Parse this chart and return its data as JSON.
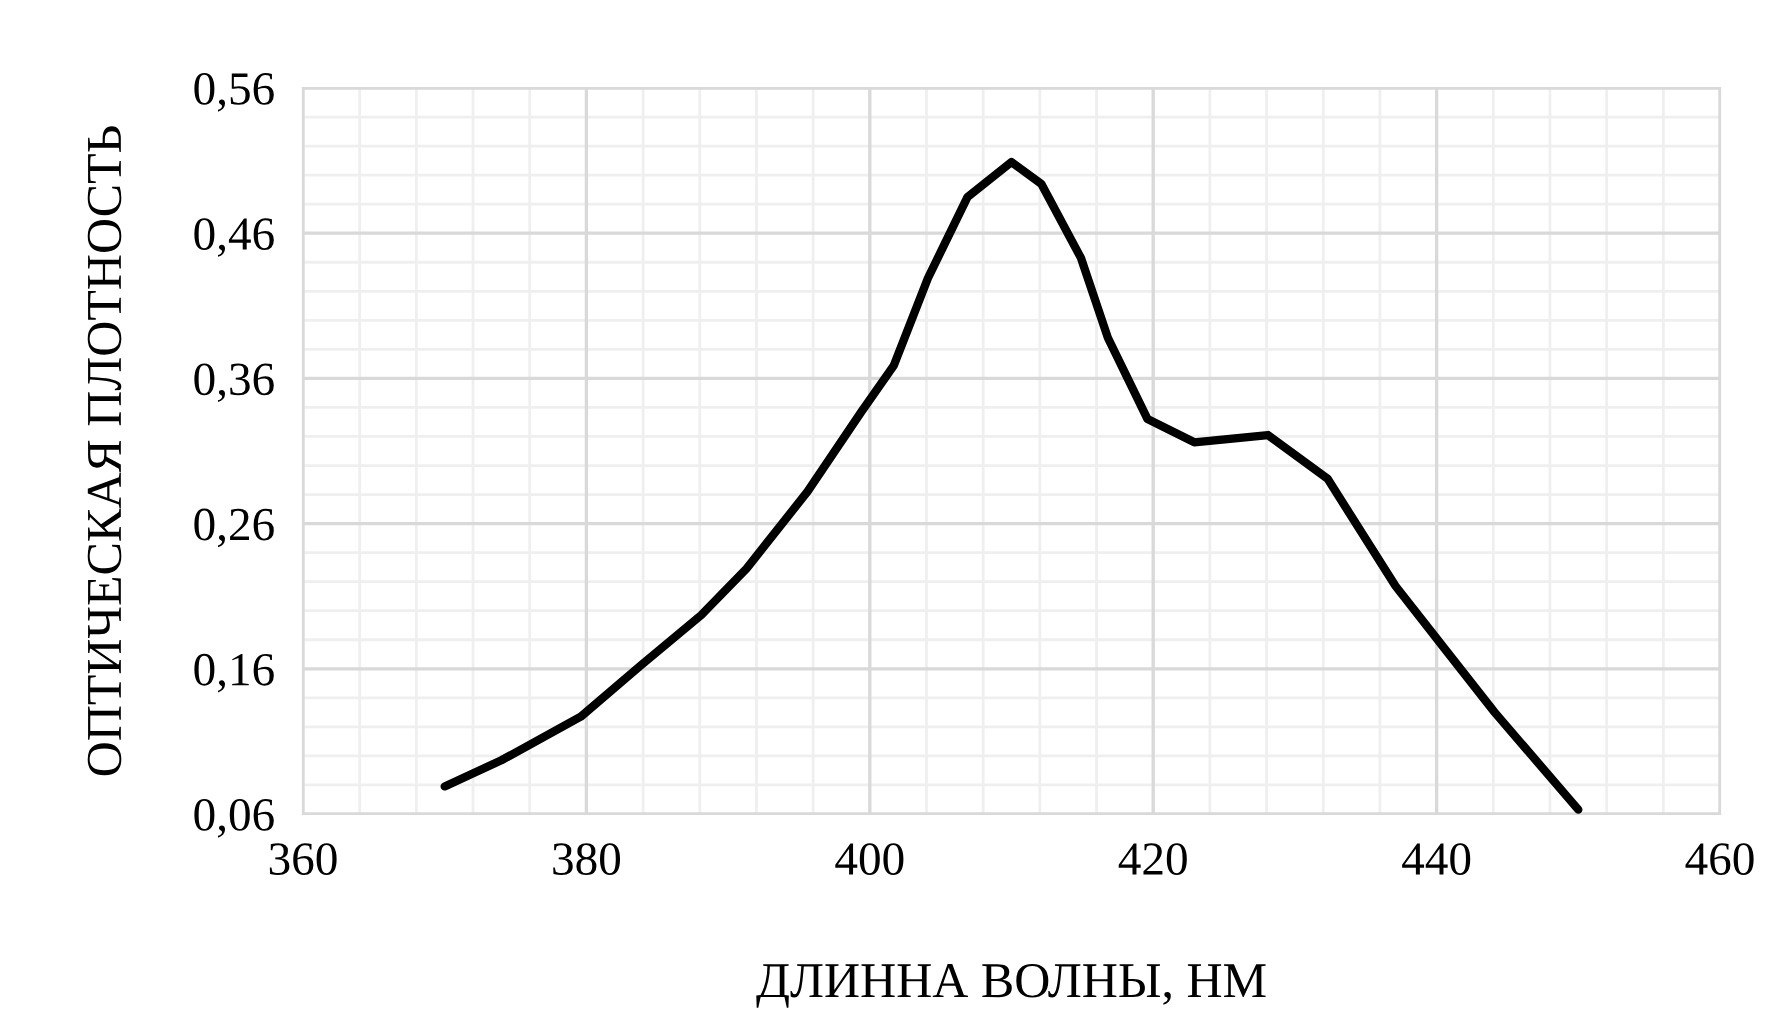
{
  "chart_data": {
    "type": "line",
    "xlabel": "ДЛИННА ВОЛНЫ, НМ",
    "ylabel": "ОПТИЧЕСКАЯ ПЛОТНОСТЬ",
    "x": [
      370,
      374,
      379.6,
      383.8,
      388.1,
      391.3,
      395.6,
      399.4,
      401.7,
      404.1,
      406.9,
      410,
      412.1,
      414.9,
      416.8,
      419.6,
      422.9,
      428.1,
      432.3,
      437.1,
      440.8,
      444.1,
      450
    ],
    "series": [
      {
        "color": "#000000",
        "values": [
          0.079,
          0.097,
          0.127,
          0.162,
          0.197,
          0.229,
          0.282,
          0.337,
          0.369,
          0.429,
          0.485,
          0.509,
          0.494,
          0.443,
          0.388,
          0.332,
          0.316,
          0.321,
          0.291,
          0.217,
          0.171,
          0.13,
          0.063
        ]
      }
    ],
    "xlim": [
      360,
      460
    ],
    "xticks": [
      360,
      380,
      400,
      420,
      440,
      460
    ],
    "ylim": [
      0.06,
      0.56
    ],
    "yticks": [
      {
        "value": 0.06,
        "label": "0,06"
      },
      {
        "value": 0.16,
        "label": "0,16"
      },
      {
        "value": 0.26,
        "label": "0,26"
      },
      {
        "value": 0.36,
        "label": "0,36"
      },
      {
        "value": 0.46,
        "label": "0,46"
      },
      {
        "value": 0.56,
        "label": "0,56"
      }
    ],
    "grid": true,
    "marker": "none",
    "line_style": "solid",
    "legend": false
  }
}
